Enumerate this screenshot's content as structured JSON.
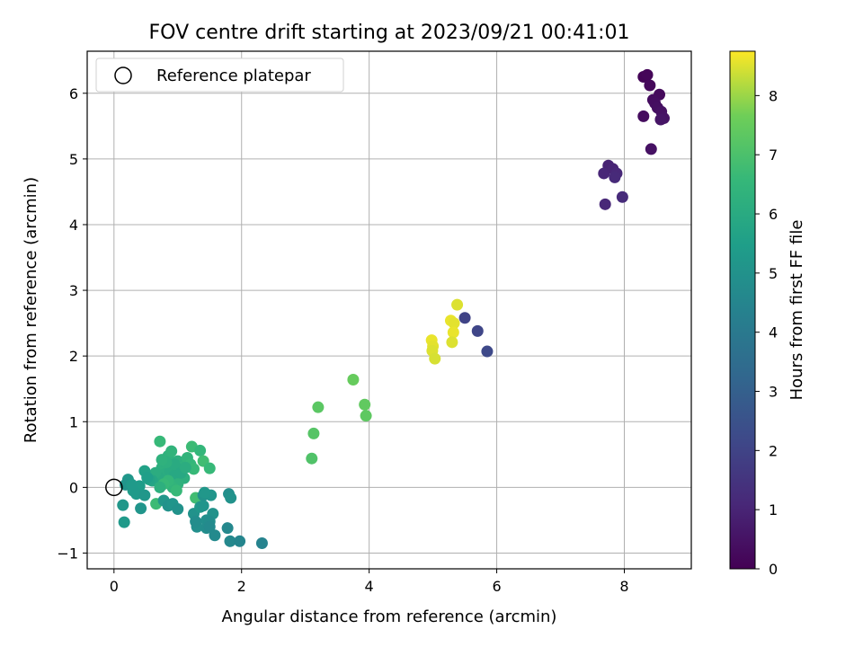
{
  "chart_data": {
    "type": "scatter",
    "title": "FOV centre drift starting at 2023/09/21 00:41:01",
    "xlabel": "Angular distance from reference (arcmin)",
    "ylabel": "Rotation from reference (arcmin)",
    "xlim": [
      -0.42,
      9.05
    ],
    "ylim": [
      -1.24,
      6.64
    ],
    "xticks": [
      0,
      2,
      4,
      6,
      8
    ],
    "yticks": [
      -1,
      0,
      1,
      2,
      3,
      4,
      5,
      6
    ],
    "grid": true,
    "legend": {
      "position": "top-left",
      "entries": [
        "Reference platepar"
      ]
    },
    "reference_point": {
      "x": 0,
      "y": 0
    },
    "colorbar": {
      "label": "Hours from first FF file",
      "range": [
        0,
        8.75
      ],
      "ticks": [
        0,
        1,
        2,
        3,
        4,
        5,
        6,
        7,
        8
      ],
      "colormap": "viridis"
    },
    "series": [
      {
        "points": [
          [
            8.3,
            6.25,
            0.1
          ],
          [
            8.36,
            6.28,
            0.15
          ],
          [
            8.4,
            6.12,
            0.2
          ],
          [
            8.55,
            5.98,
            0.25
          ],
          [
            8.45,
            5.9,
            0.3
          ],
          [
            8.48,
            5.85,
            0.35
          ],
          [
            8.52,
            5.78,
            0.4
          ],
          [
            8.58,
            5.72,
            0.45
          ],
          [
            8.62,
            5.62,
            0.5
          ],
          [
            8.3,
            5.65,
            0.3
          ],
          [
            8.42,
            5.15,
            0.45
          ],
          [
            8.57,
            5.6,
            0.55
          ],
          [
            7.75,
            4.9,
            0.95
          ],
          [
            7.68,
            4.78,
            1.05
          ],
          [
            7.82,
            4.85,
            1.0
          ],
          [
            7.88,
            4.78,
            1.1
          ],
          [
            7.85,
            4.72,
            1.15
          ],
          [
            7.7,
            4.31,
            1.1
          ],
          [
            7.97,
            4.42,
            1.2
          ],
          [
            5.5,
            2.58,
            2.0
          ],
          [
            5.7,
            2.38,
            2.1
          ],
          [
            5.85,
            2.07,
            2.2
          ],
          [
            5.38,
            2.78,
            8.5
          ],
          [
            5.28,
            2.54,
            8.6
          ],
          [
            5.33,
            2.5,
            8.55
          ],
          [
            5.32,
            2.36,
            8.6
          ],
          [
            5.3,
            2.21,
            8.5
          ],
          [
            4.98,
            2.24,
            8.6
          ],
          [
            5.0,
            2.15,
            8.55
          ],
          [
            4.99,
            2.08,
            8.5
          ],
          [
            5.03,
            1.96,
            8.45
          ],
          [
            3.75,
            1.64,
            7.5
          ],
          [
            3.93,
            1.26,
            7.4
          ],
          [
            3.95,
            1.09,
            7.35
          ],
          [
            3.2,
            1.22,
            7.3
          ],
          [
            3.13,
            0.82,
            7.2
          ],
          [
            3.1,
            0.44,
            7.1
          ],
          [
            0.72,
            0.7,
            6.6
          ],
          [
            1.22,
            0.62,
            6.7
          ],
          [
            1.35,
            0.56,
            6.5
          ],
          [
            1.4,
            0.4,
            6.8
          ],
          [
            1.5,
            0.29,
            6.6
          ],
          [
            0.85,
            0.48,
            6.3
          ],
          [
            0.9,
            0.55,
            6.4
          ],
          [
            1.0,
            0.4,
            6.2
          ],
          [
            1.05,
            0.3,
            6.3
          ],
          [
            1.15,
            0.45,
            6.4
          ],
          [
            1.2,
            0.35,
            6.5
          ],
          [
            1.25,
            0.28,
            6.6
          ],
          [
            0.75,
            0.3,
            6.2
          ],
          [
            0.8,
            0.2,
            6.1
          ],
          [
            0.88,
            0.25,
            6.0
          ],
          [
            0.95,
            0.18,
            5.9
          ],
          [
            0.7,
            0.15,
            6.0
          ],
          [
            0.65,
            0.22,
            6.1
          ],
          [
            0.6,
            0.1,
            5.8
          ],
          [
            0.55,
            0.12,
            5.7
          ],
          [
            1.1,
            0.14,
            6.2
          ],
          [
            1.0,
            0.05,
            6.3
          ],
          [
            0.92,
            0.0,
            6.4
          ],
          [
            0.85,
            0.1,
            6.5
          ],
          [
            0.78,
            0.05,
            6.6
          ],
          [
            0.98,
            -0.05,
            6.6
          ],
          [
            0.72,
            0.0,
            6.2
          ],
          [
            0.66,
            -0.25,
            6.7
          ],
          [
            1.28,
            -0.16,
            6.8
          ],
          [
            0.95,
            0.35,
            6.0
          ],
          [
            1.05,
            0.22,
            5.9
          ],
          [
            1.12,
            0.3,
            6.1
          ],
          [
            0.82,
            0.38,
            6.2
          ],
          [
            0.75,
            0.42,
            6.3
          ],
          [
            0.48,
            0.25,
            5.6
          ],
          [
            0.52,
            0.15,
            5.5
          ],
          [
            0.4,
            0.02,
            5.4
          ],
          [
            0.3,
            -0.05,
            5.4
          ],
          [
            0.35,
            -0.1,
            5.3
          ],
          [
            0.48,
            -0.12,
            5.2
          ],
          [
            0.22,
            0.12,
            5.2
          ],
          [
            0.18,
            0.04,
            5.1
          ],
          [
            0.28,
            0.04,
            5.3
          ],
          [
            0.14,
            -0.27,
            5.2
          ],
          [
            0.16,
            -0.53,
            5.3
          ],
          [
            0.42,
            -0.32,
            5.1
          ],
          [
            0.78,
            -0.2,
            5.2
          ],
          [
            0.85,
            -0.28,
            5.0
          ],
          [
            0.92,
            -0.25,
            5.1
          ],
          [
            1.0,
            -0.33,
            5.0
          ],
          [
            1.25,
            -0.4,
            5.0
          ],
          [
            1.35,
            -0.3,
            5.2
          ],
          [
            1.4,
            -0.28,
            5.1
          ],
          [
            1.55,
            -0.4,
            5.0
          ],
          [
            1.45,
            -0.5,
            4.9
          ],
          [
            1.5,
            -0.52,
            4.8
          ],
          [
            1.4,
            -0.12,
            5.0
          ],
          [
            1.52,
            -0.12,
            5.1
          ],
          [
            1.3,
            -0.6,
            4.9
          ],
          [
            1.45,
            -0.62,
            4.8
          ],
          [
            1.5,
            -0.6,
            4.7
          ],
          [
            1.78,
            -0.62,
            4.6
          ],
          [
            1.58,
            -0.73,
            4.7
          ],
          [
            1.82,
            -0.82,
            4.6
          ],
          [
            1.97,
            -0.82,
            4.5
          ],
          [
            2.32,
            -0.85,
            4.4
          ],
          [
            1.8,
            -0.1,
            4.9
          ],
          [
            1.83,
            -0.16,
            5.0
          ],
          [
            1.28,
            -0.52,
            4.8
          ],
          [
            1.42,
            -0.08,
            5.2
          ]
        ]
      }
    ]
  }
}
